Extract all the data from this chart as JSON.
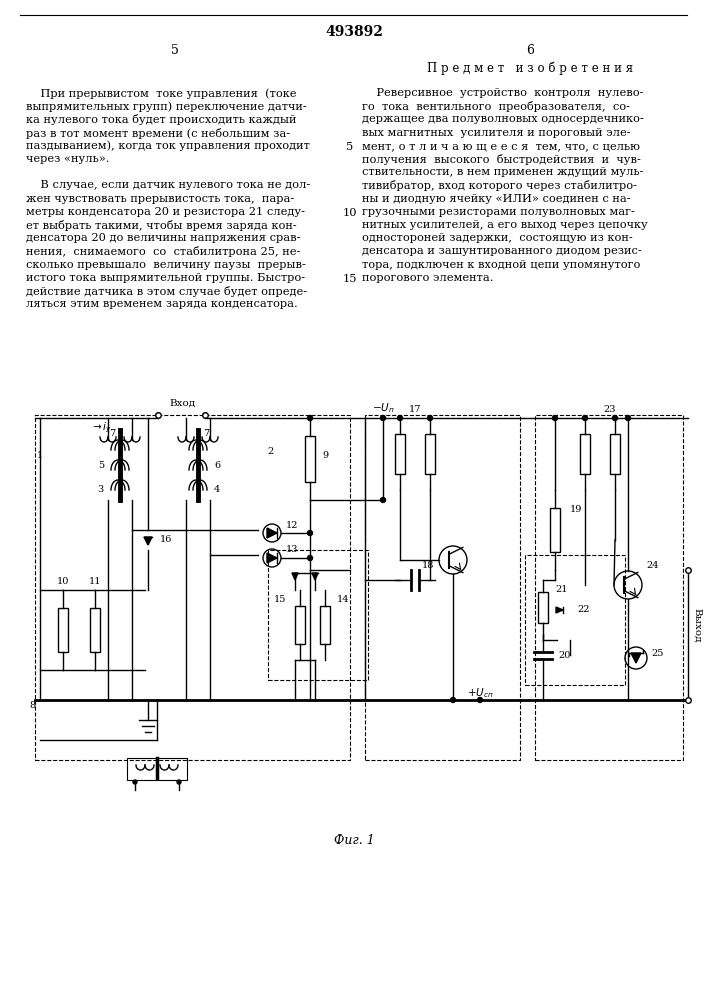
{
  "patent_number": "493892",
  "col1_text_lines": [
    "    При прерывистом  токе управления  (токе",
    "выпрямительных групп) переключение датчи-",
    "ка нулевого тока будет происходить каждый",
    "раз в тот момент времени (с небольшим за-",
    "паздыванием), когда ток управления проходит",
    "через «нуль».",
    "",
    "    В случае, если датчик нулевого тока не дол-",
    "жен чувствовать прерывистость тока,  пара-",
    "метры конденсатора 20 и резистора 21 следу-",
    "ет выбрать такими, чтобы время заряда кон-",
    "денсатора 20 до величины напряжения срав-",
    "нения,  снимаемого  со  стабилитрона 25, не-",
    "сколько превышало  величину паузы  прерыв-",
    "истого тока выпрямительной группы. Быстро-",
    "действие датчика в этом случае будет опреде-",
    "ляться этим временем заряда конденсатора."
  ],
  "col2_heading": "П р е д м е т   и з о б р е т е н и я",
  "col2_text_lines": [
    "    Реверсивное  устройство  контроля  нулево-",
    "го  тока  вентильного  преобразователя,  со-",
    "держащее два полуволновых односердечнико-",
    "вых магнитных  усилителя и пороговый эле-",
    "мент, о т л и ч а ю щ е е с я  тем, что, с целью",
    "получения  высокого  быстродействия  и  чув-",
    "ствительности, в нем применен ждущий муль-",
    "тивибратор, вход которого через стабилитро-",
    "ны и диодную ячейку «ИЛИ» соединен с на-",
    "грузочными резисторами полуволновых маг-",
    "нитных усилителей, а его выход через цепочку",
    "одностороней задержки,  состоящую из кон-",
    "денсатора и зашунтированного диодом резис-",
    "тора, подключен к входной цепи упомянутого",
    "порогового элемента."
  ],
  "line_numbers": [
    5,
    10,
    15
  ],
  "fig_caption": "Фиг. 1",
  "bg_color": "#ffffff",
  "text_color": "#1a1a1a"
}
